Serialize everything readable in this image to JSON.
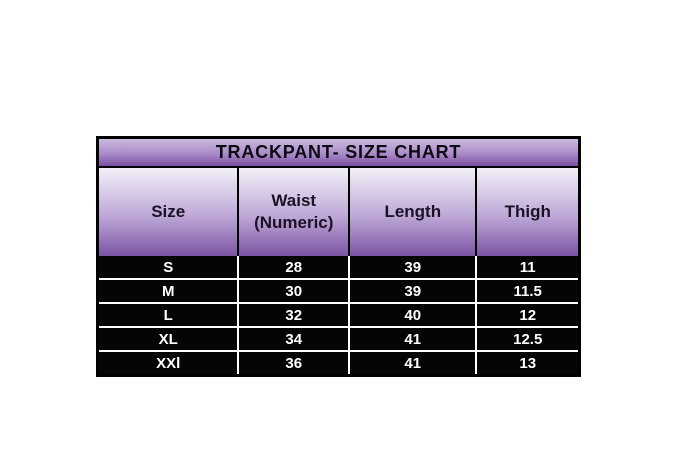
{
  "chart_data": {
    "type": "table",
    "title": "TRACKPANT- SIZE CHART",
    "columns": [
      "Size",
      "Waist (Numeric)",
      "Length",
      "Thigh"
    ],
    "rows": [
      [
        "S",
        "28",
        "39",
        "11"
      ],
      [
        "M",
        "30",
        "39",
        "11.5"
      ],
      [
        "L",
        "32",
        "40",
        "12"
      ],
      [
        "XL",
        "34",
        "41",
        "12.5"
      ],
      [
        "XXl",
        "36",
        "41",
        "13"
      ]
    ]
  },
  "colors": {
    "title_gradient_top": "#cbbade",
    "title_gradient_mid": "#a98bc8",
    "title_gradient_bottom": "#7a4fa0",
    "header_gradient_top": "#f4f0f9",
    "header_gradient_mid": "#bda7d6",
    "header_gradient_bottom": "#7b54a3",
    "title_text": "#0d0a12",
    "header_text": "#1b1226",
    "data_row_bg": "#050505",
    "data_row_text": "#ffffff",
    "separator": "#ffffff",
    "border": "#000000"
  }
}
